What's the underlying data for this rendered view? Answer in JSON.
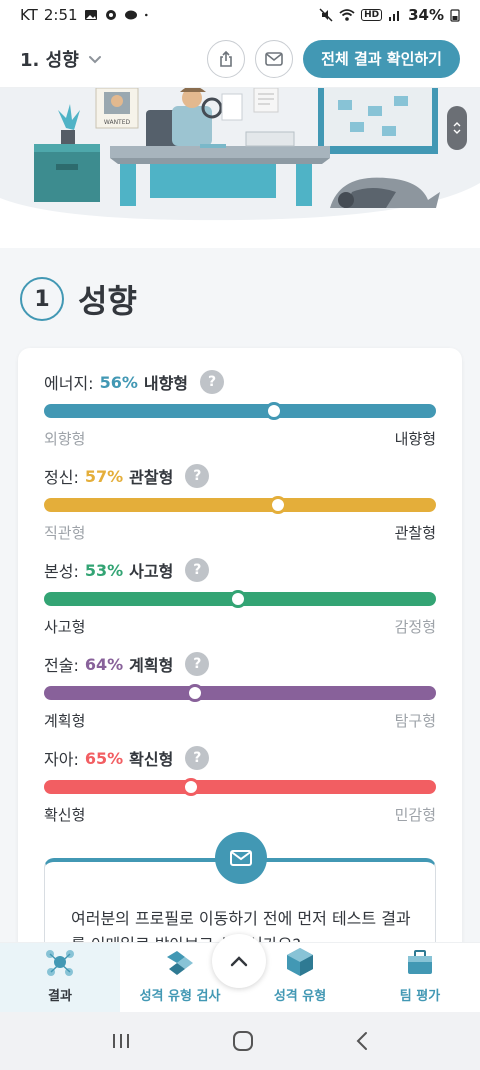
{
  "status_bar": {
    "carrier": "KT",
    "time": "2:51",
    "battery": "34%",
    "net_badge": "HD"
  },
  "header": {
    "section_label": "1. 성향",
    "primary_button": "전체 결과 확인하기"
  },
  "hero": {
    "poster_text": "WANTED"
  },
  "section": {
    "number": "1",
    "title": "성향"
  },
  "traits": [
    {
      "label": "에너지:",
      "percent": "56%",
      "type": "내향형",
      "value": 56,
      "color": "#4298b4",
      "left": "외향형",
      "right": "내향형",
      "strong_side": "right",
      "knob_pos": 0.588
    },
    {
      "label": "정신:",
      "percent": "57%",
      "type": "관찰형",
      "value": 57,
      "color": "#e4ae3a",
      "left": "직관형",
      "right": "관찰형",
      "strong_side": "right",
      "knob_pos": 0.597
    },
    {
      "label": "본성:",
      "percent": "53%",
      "type": "사고형",
      "value": 53,
      "color": "#33a474",
      "left": "사고형",
      "right": "감정형",
      "strong_side": "left",
      "knob_pos": 0.495
    },
    {
      "label": "전술:",
      "percent": "64%",
      "type": "계획형",
      "value": 64,
      "color": "#88619a",
      "left": "계획형",
      "right": "탐구형",
      "strong_side": "left",
      "knob_pos": 0.385
    },
    {
      "label": "자아:",
      "percent": "65%",
      "type": "확신형",
      "value": 65,
      "color": "#f25e62",
      "left": "확신형",
      "right": "민감형",
      "strong_side": "left",
      "knob_pos": 0.375
    }
  ],
  "email_box": {
    "text": "여러분의 프로필로 이동하기 전에 먼저 테스트 결과를 이메일로 받아보고 싶으신가요?"
  },
  "bottom_nav": [
    {
      "label": "결과",
      "icon": "results-icon",
      "active": true
    },
    {
      "label": "성격 유형 검사",
      "icon": "personality-test-icon",
      "active": false
    },
    {
      "label": "성격 유형",
      "icon": "personality-types-icon",
      "active": false
    },
    {
      "label": "팀 평가",
      "icon": "team-assessment-icon",
      "active": false
    }
  ],
  "colors": {
    "accent": "#4298b4",
    "energy": "#4298b4",
    "mind": "#e4ae3a",
    "nature": "#33a474",
    "tactics": "#88619a",
    "identity": "#f25e62"
  }
}
